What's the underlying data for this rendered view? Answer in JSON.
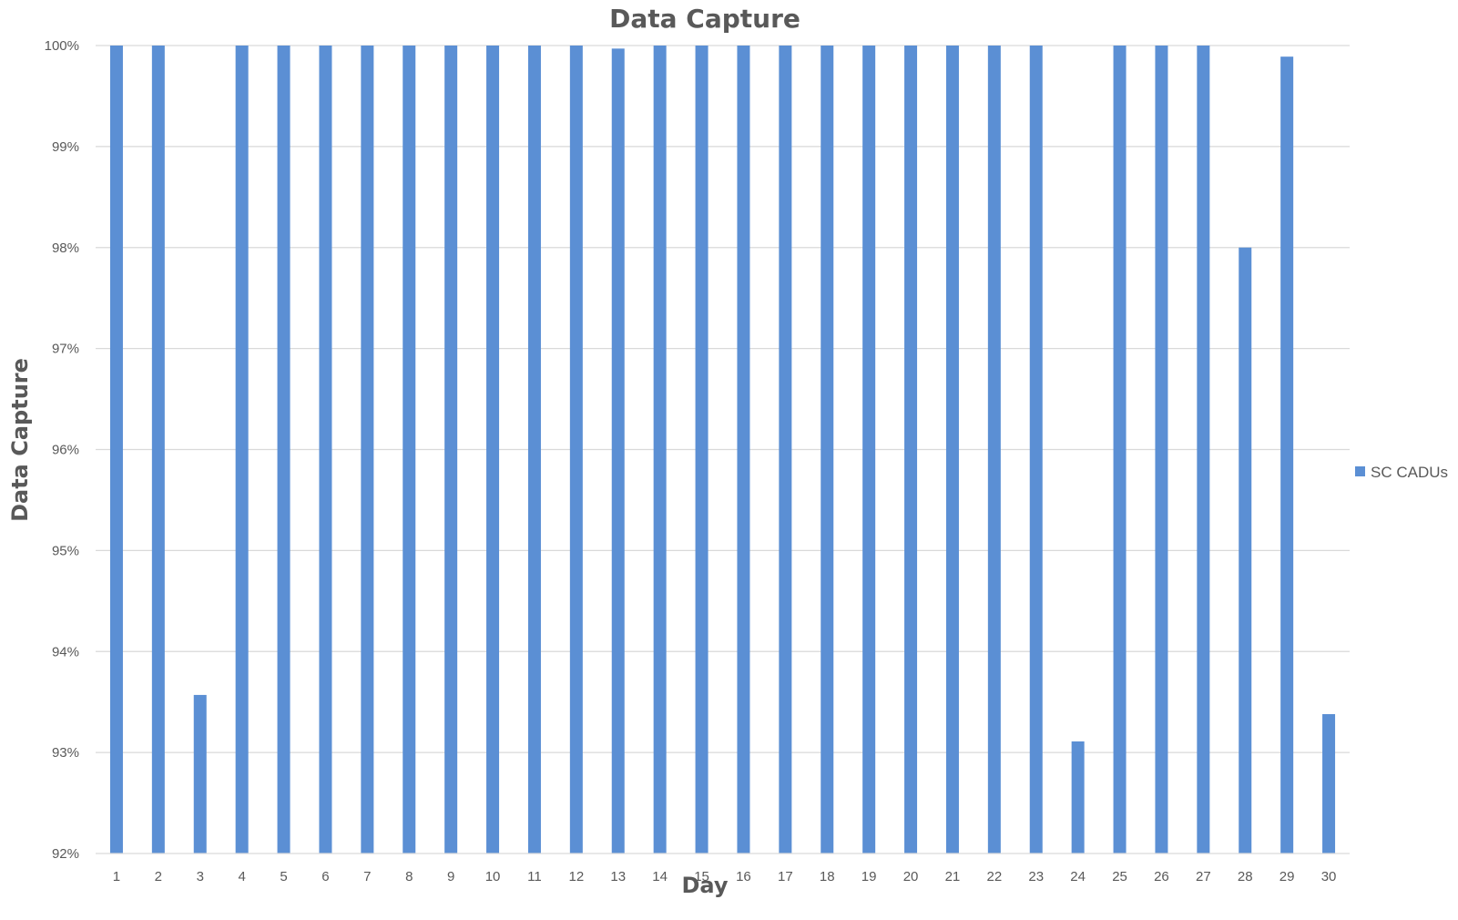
{
  "chart_data": {
    "type": "bar",
    "title": "Data Capture",
    "xlabel": "Day",
    "ylabel": "Data Capture",
    "categories": [
      "1",
      "2",
      "3",
      "4",
      "5",
      "6",
      "7",
      "8",
      "9",
      "10",
      "11",
      "12",
      "13",
      "14",
      "15",
      "16",
      "17",
      "18",
      "19",
      "20",
      "21",
      "22",
      "23",
      "24",
      "25",
      "26",
      "27",
      "28",
      "29",
      "30"
    ],
    "series": [
      {
        "name": "SC CADUs",
        "color": "#5b8fd4",
        "values": [
          100,
          100,
          93.57,
          100,
          100,
          100,
          100,
          100,
          100,
          100,
          100,
          100,
          99.97,
          100,
          100,
          100,
          100,
          100,
          100,
          100,
          100,
          100,
          100,
          93.11,
          100,
          100,
          100,
          98.0,
          99.89,
          93.38
        ]
      }
    ],
    "ylim": [
      92,
      100
    ],
    "yticks": [
      92,
      93,
      94,
      95,
      96,
      97,
      98,
      99,
      100
    ],
    "ytick_labels": [
      "92%",
      "93%",
      "94%",
      "95%",
      "96%",
      "97%",
      "98%",
      "99%",
      "100%"
    ],
    "grid": true,
    "legend_position": "right"
  }
}
